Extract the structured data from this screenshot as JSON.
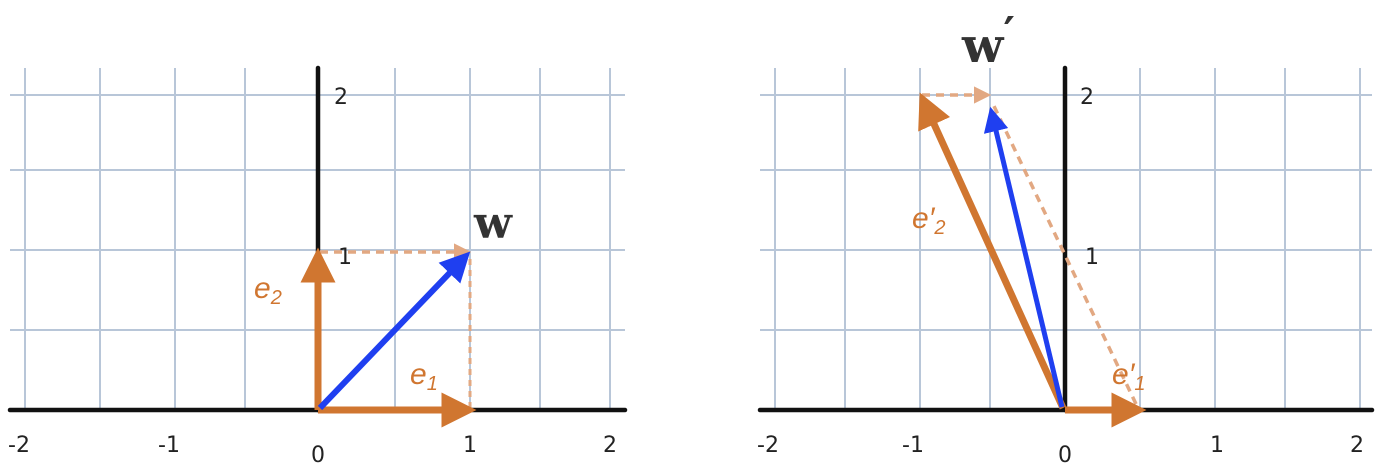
{
  "colors": {
    "grid": "#b8c6d8",
    "axis": "#111111",
    "basis": "#d07630",
    "basis_dashed": "#e2a882",
    "vector": "#1f3ff0"
  },
  "panels": [
    {
      "id": "left",
      "x_ticks": [
        "-2",
        "-1",
        "0",
        "1",
        "2"
      ],
      "y_ticks": [
        "1",
        "2"
      ],
      "vector_label": "w",
      "vector_prime": "",
      "basis_labels": {
        "e1": "e",
        "e1_sub": "1",
        "e2": "e",
        "e2_sub": "2",
        "prime": ""
      },
      "vectors": {
        "e1": [
          1,
          0
        ],
        "e2": [
          0,
          1
        ],
        "w": [
          1,
          1
        ]
      }
    },
    {
      "id": "right",
      "x_ticks": [
        "-2",
        "-1",
        "0",
        "1",
        "2"
      ],
      "y_ticks": [
        "1",
        "2"
      ],
      "vector_label": "w",
      "vector_prime": "′",
      "basis_labels": {
        "e1": "e",
        "e1_sub": "1",
        "e2": "e",
        "e2_sub": "2",
        "prime": "′"
      },
      "vectors": {
        "e1": [
          0.5,
          0
        ],
        "e2": [
          -1,
          2
        ],
        "w": [
          -0.5,
          2
        ]
      }
    }
  ]
}
